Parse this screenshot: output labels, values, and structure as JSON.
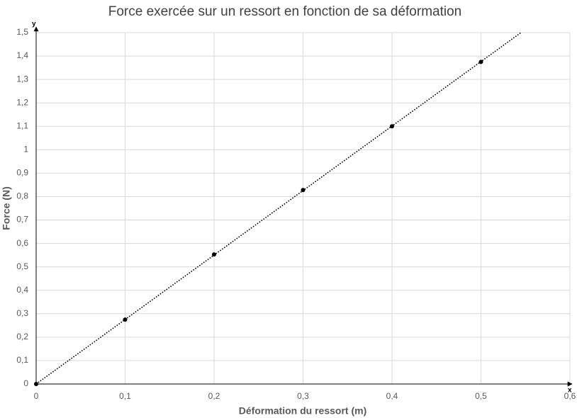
{
  "chart_data": {
    "type": "scatter",
    "title": "Force exercée sur un ressort en fonction de sa déformation",
    "xlabel": "Déformation du ressort (m)",
    "ylabel": "Force (N)",
    "x_axis_letter": "x",
    "y_axis_letter": "y",
    "x": [
      0,
      0.1,
      0.2,
      0.3,
      0.4,
      0.5
    ],
    "values": [
      0,
      0.275,
      0.553,
      0.828,
      1.1,
      1.375
    ],
    "color": "#000000",
    "trendline": {
      "x": [
        0,
        0.545
      ],
      "y": [
        0,
        1.5
      ],
      "color": "#000000",
      "style": "dotted"
    },
    "xlim": [
      0,
      0.6
    ],
    "ylim": [
      0,
      1.5
    ],
    "xticks": [
      0,
      {
        "value": 0.1,
        "label": "0,1"
      },
      {
        "value": 0.2,
        "label": "0,2"
      },
      {
        "value": 0.3,
        "label": "0,3"
      },
      {
        "value": 0.4,
        "label": "0,4"
      },
      {
        "value": 0.5,
        "label": "0,5"
      },
      {
        "value": 0.6,
        "label": "0,6"
      }
    ],
    "yticks": [
      0,
      {
        "value": 0.1,
        "label": "0,1"
      },
      {
        "value": 0.2,
        "label": "0,2"
      },
      {
        "value": 0.3,
        "label": "0,3"
      },
      {
        "value": 0.4,
        "label": "0,4"
      },
      {
        "value": 0.5,
        "label": "0,5"
      },
      {
        "value": 0.6,
        "label": "0,6"
      },
      {
        "value": 0.7,
        "label": "0,7"
      },
      {
        "value": 0.8,
        "label": "0,8"
      },
      {
        "value": 0.9,
        "label": "0,9"
      },
      1,
      {
        "value": 1.1,
        "label": "1,1"
      },
      {
        "value": 1.2,
        "label": "1,2"
      },
      {
        "value": 1.3,
        "label": "1,3"
      },
      {
        "value": 1.4,
        "label": "1,4"
      },
      {
        "value": 1.5,
        "label": "1,5"
      }
    ],
    "grid": true
  }
}
